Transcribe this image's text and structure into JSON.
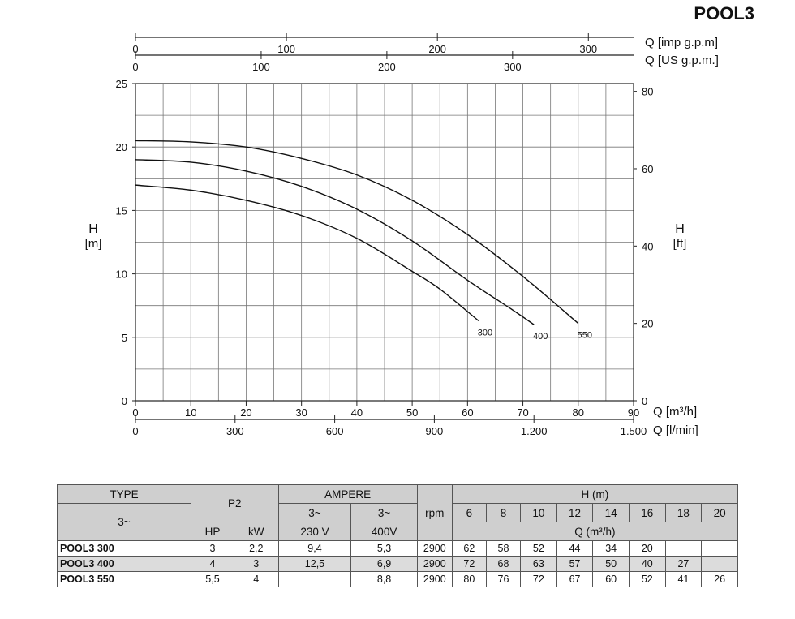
{
  "title": "POOL3",
  "chart_data": {
    "type": "line",
    "x_axis": {
      "label": "Q [m³/h]",
      "range": [
        0,
        90
      ],
      "ticks": [
        0,
        10,
        20,
        30,
        40,
        50,
        60,
        70,
        80,
        90
      ]
    },
    "y_axis_left": {
      "label_top": "H",
      "label_bottom": "[m]",
      "range": [
        0,
        25
      ],
      "ticks": [
        0,
        5,
        10,
        15,
        20,
        25
      ]
    },
    "y_axis_right": {
      "label_top": "H",
      "label_bottom": "[ft]",
      "range": [
        0,
        82.02
      ],
      "ticks": [
        0,
        20,
        40,
        60,
        80
      ]
    },
    "secondary_x_axes": [
      {
        "label": "Q [l/min]",
        "position": "bottom",
        "ticks": [
          {
            "value": 0,
            "label": "0"
          },
          {
            "value": 300,
            "label": "300"
          },
          {
            "value": 600,
            "label": "600"
          },
          {
            "value": 900,
            "label": "900"
          },
          {
            "value": 1200,
            "label": "1.200"
          },
          {
            "value": 1500,
            "label": "1.500"
          }
        ],
        "factor": 16.6667
      },
      {
        "label": "Q [imp g.p.m]",
        "position": "top",
        "ticks": [
          {
            "value": 0,
            "label": "0"
          },
          {
            "value": 100,
            "label": "100"
          },
          {
            "value": 200,
            "label": "200"
          },
          {
            "value": 300,
            "label": "300"
          }
        ],
        "factor": 3.666
      },
      {
        "label": "Q [US g.p.m.]",
        "position": "top",
        "ticks": [
          {
            "value": 0,
            "label": "0"
          },
          {
            "value": 100,
            "label": "100"
          },
          {
            "value": 200,
            "label": "200"
          },
          {
            "value": 300,
            "label": "300"
          }
        ],
        "factor": 4.403
      }
    ],
    "grid": true,
    "series": [
      {
        "name": "300",
        "x": [
          0,
          10,
          20,
          30,
          40,
          50,
          55,
          62
        ],
        "y": [
          17.0,
          16.6,
          15.8,
          14.6,
          12.8,
          10.2,
          8.8,
          6.3
        ]
      },
      {
        "name": "400",
        "x": [
          0,
          10,
          20,
          30,
          40,
          50,
          60,
          68,
          72
        ],
        "y": [
          19.0,
          18.8,
          18.1,
          16.9,
          15.1,
          12.6,
          9.5,
          7.2,
          6.0
        ]
      },
      {
        "name": "550",
        "x": [
          0,
          10,
          20,
          30,
          40,
          50,
          60,
          70,
          80
        ],
        "y": [
          20.5,
          20.4,
          20.0,
          19.1,
          17.8,
          15.8,
          13.1,
          9.8,
          6.1
        ]
      }
    ]
  },
  "table": {
    "type_header": "TYPE",
    "phase_label": "3~",
    "p2_header": "P2",
    "ampere_header": "AMPERE",
    "amp_phase_1": "3~",
    "amp_phase_2": "3~",
    "rpm_header": "rpm",
    "h_header": "H (m)",
    "q_header": "Q (m³/h)",
    "hp_header": "HP",
    "kw_header": "kW",
    "v230_header": "230 V",
    "v400_header": "400V",
    "heads": [
      "6",
      "8",
      "10",
      "12",
      "14",
      "16",
      "18",
      "20"
    ],
    "rows": [
      {
        "type": "POOL3 300",
        "hp": "3",
        "kw": "2,2",
        "a230": "9,4",
        "a400": "5,3",
        "rpm": "2900",
        "q": [
          "62",
          "58",
          "52",
          "44",
          "34",
          "20",
          "",
          ""
        ]
      },
      {
        "type": "POOL3 400",
        "hp": "4",
        "kw": "3",
        "a230": "12,5",
        "a400": "6,9",
        "rpm": "2900",
        "q": [
          "72",
          "68",
          "63",
          "57",
          "50",
          "40",
          "27",
          ""
        ]
      },
      {
        "type": "POOL3 550",
        "hp": "5,5",
        "kw": "4",
        "a230": "",
        "a400": "8,8",
        "rpm": "2900",
        "q": [
          "80",
          "76",
          "72",
          "67",
          "60",
          "52",
          "41",
          "26"
        ]
      }
    ]
  }
}
